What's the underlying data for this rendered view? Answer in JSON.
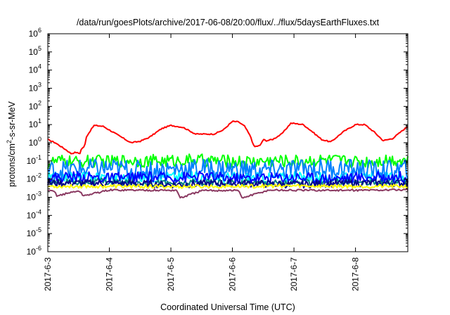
{
  "chart_data": {
    "type": "line",
    "title": "/data/run/goesPlots/archive/2017-06-08/20:00/flux/../flux/5daysEarthFluxes.txt",
    "xlabel": "Coordinated Universal Time (UTC)",
    "ylabel": {
      "prefix": "protons/cm",
      "sup": "2",
      "suffix": "-s-sr-MeV"
    },
    "y_scale": "log",
    "ylim_exponents": [
      -6,
      6
    ],
    "y_tick_base": "10",
    "y_tick_exponents": [
      "-6",
      "-5",
      "-4",
      "-3",
      "-2",
      "-1",
      "0",
      "1",
      "2",
      "3",
      "4",
      "5",
      "6"
    ],
    "x_range_days": [
      0,
      5.85
    ],
    "x_tick_labels": [
      "2017-6-3",
      "2017-6-4",
      "2017-6-5",
      "2017-6-6",
      "2017-6-7",
      "2017-6-8"
    ],
    "grid": false,
    "legend": "none",
    "series": [
      {
        "color": "#ff0000",
        "noise": 0.03,
        "x": [
          0,
          0.12,
          0.3,
          0.38,
          0.45,
          0.52,
          0.55,
          0.6,
          0.62,
          0.75,
          0.9,
          1.05,
          1.2,
          1.35,
          1.5,
          1.65,
          1.85,
          2.0,
          2.2,
          2.4,
          2.6,
          2.7,
          2.85,
          3.0,
          3.1,
          3.2,
          3.3,
          3.35,
          3.45,
          3.5,
          3.55,
          3.65,
          3.8,
          3.95,
          4.05,
          4.15,
          4.3,
          4.45,
          4.6,
          4.8,
          5.0,
          5.15,
          5.3,
          5.45,
          5.6,
          5.85
        ],
        "y": [
          1.5,
          1.0,
          0.4,
          0.25,
          0.3,
          0.25,
          0.5,
          0.6,
          2,
          9,
          8,
          4,
          2,
          1,
          1.2,
          2,
          6,
          9,
          7,
          3,
          3,
          3,
          5,
          15,
          14,
          8,
          2,
          0.6,
          0.7,
          1.5,
          1.3,
          1.5,
          3,
          12,
          11,
          10,
          4,
          1.5,
          1.1,
          4,
          10,
          10,
          4,
          1.3,
          1.7,
          8
        ]
      },
      {
        "color": "#00ff00",
        "noise": 0.35,
        "x": [
          0,
          0.1,
          0.3,
          0.5,
          0.7,
          1.0,
          1.3,
          1.6,
          2.0,
          2.4,
          2.8,
          3.2,
          3.6,
          4.0,
          4.4,
          4.8,
          5.2,
          5.5,
          5.85
        ],
        "y": [
          0.07,
          0.09,
          0.1,
          0.08,
          0.1,
          0.09,
          0.11,
          0.1,
          0.1,
          0.11,
          0.1,
          0.09,
          0.1,
          0.1,
          0.11,
          0.1,
          0.09,
          0.12,
          0.11
        ]
      },
      {
        "color": "#00ffff",
        "noise": 0.3,
        "x": [
          0,
          0.4,
          0.8,
          1.2,
          1.6,
          2.0,
          2.5,
          3.0,
          3.5,
          4.0,
          4.5,
          5.0,
          5.5,
          5.85
        ],
        "y": [
          0.012,
          0.013,
          0.014,
          0.012,
          0.013,
          0.014,
          0.012,
          0.013,
          0.012,
          0.013,
          0.012,
          0.013,
          0.012,
          0.012
        ]
      },
      {
        "color": "#0080ff",
        "noise": 0.55,
        "x": [
          0,
          0.5,
          1.0,
          1.5,
          2.0,
          2.5,
          3.0,
          3.5,
          4.0,
          4.5,
          5.0,
          5.5,
          5.85
        ],
        "y": [
          0.03,
          0.035,
          0.04,
          0.03,
          0.035,
          0.04,
          0.035,
          0.03,
          0.035,
          0.04,
          0.035,
          0.03,
          0.035
        ]
      },
      {
        "color": "#008080",
        "noise": 0.2,
        "x": [
          0,
          1.0,
          2.0,
          3.0,
          4.0,
          5.0,
          5.85
        ],
        "y": [
          0.007,
          0.007,
          0.006,
          0.007,
          0.006,
          0.007,
          0.006
        ]
      },
      {
        "color": "#0000ff",
        "noise": 0.3,
        "x": [
          0,
          0.5,
          1.0,
          1.5,
          2.0,
          2.5,
          3.0,
          3.5,
          4.0,
          4.5,
          5.0,
          5.5,
          5.85
        ],
        "y": [
          0.012,
          0.014,
          0.011,
          0.013,
          0.012,
          0.014,
          0.011,
          0.012,
          0.013,
          0.011,
          0.012,
          0.013,
          0.014
        ]
      },
      {
        "color": "#00008b",
        "noise": 0.2,
        "x": [
          0,
          1.0,
          2.0,
          3.0,
          4.0,
          5.0,
          5.85
        ],
        "y": [
          0.006,
          0.006,
          0.005,
          0.006,
          0.005,
          0.006,
          0.006
        ]
      },
      {
        "color": "#ffff00",
        "noise": 0.1,
        "x": [
          0,
          1.0,
          2.0,
          3.0,
          4.0,
          5.0,
          5.85
        ],
        "y": [
          0.004,
          0.004,
          0.0038,
          0.004,
          0.0042,
          0.004,
          0.004
        ]
      },
      {
        "color": "#8b3a62",
        "noise": 0.05,
        "x": [
          0,
          0.1,
          0.15,
          0.5,
          0.58,
          1.0,
          2.0,
          2.1,
          2.15,
          2.5,
          3.0,
          3.1,
          3.15,
          3.6,
          4.0,
          5.0,
          5.85
        ],
        "y": [
          0.0022,
          0.0022,
          0.0012,
          0.0023,
          0.0012,
          0.0025,
          0.0024,
          0.0024,
          0.0009,
          0.0023,
          0.0024,
          0.0024,
          0.0009,
          0.0025,
          0.0024,
          0.0024,
          0.0026
        ]
      }
    ]
  }
}
